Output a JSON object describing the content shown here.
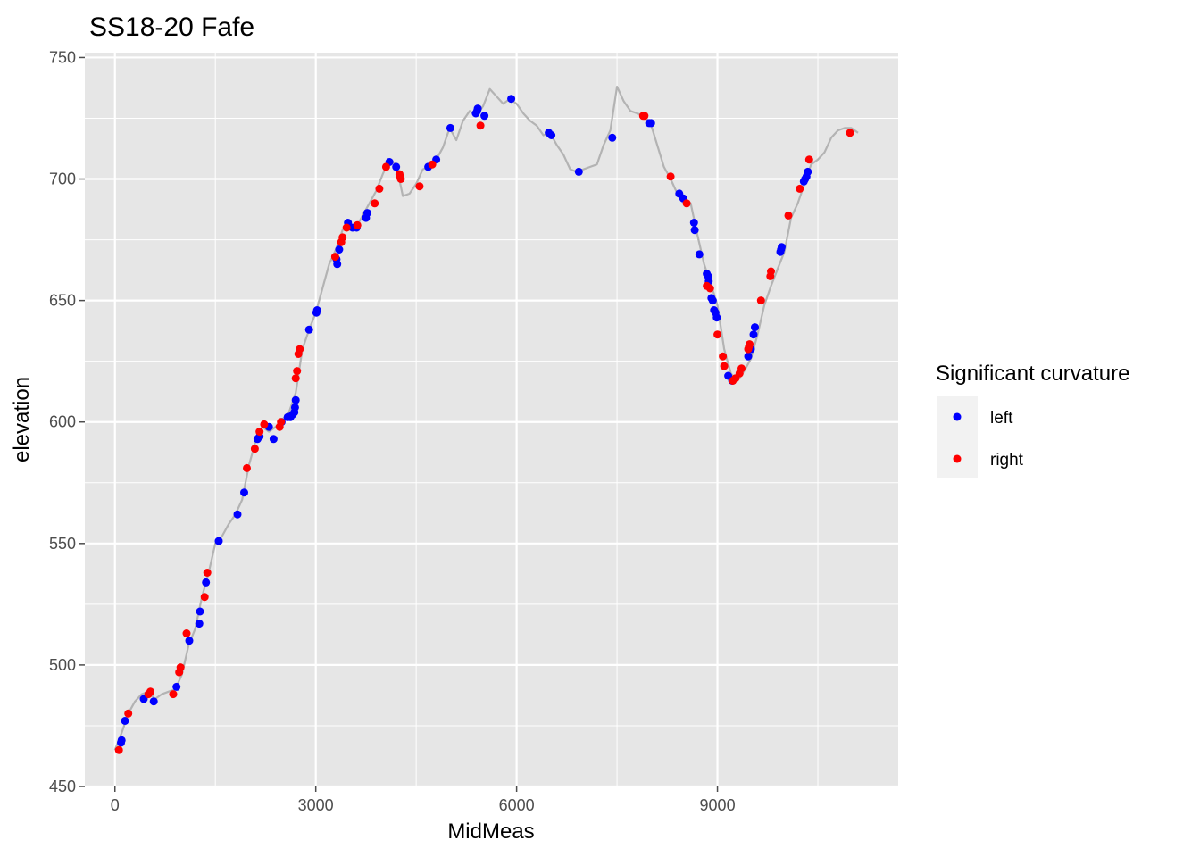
{
  "colors": {
    "panel": "#e6e6e6",
    "grid": "#ffffff",
    "profile": "#b3b3b3",
    "left": "#0000ff",
    "right": "#ff0000",
    "tick": "#4d4d4d"
  },
  "chart_data": {
    "type": "scatter",
    "title": "SS18-20 Fafe",
    "xlabel": "MidMeas",
    "ylabel": "elevation",
    "xlim": [
      -450,
      11700
    ],
    "ylim": [
      450,
      752
    ],
    "x_ticks": [
      0,
      3000,
      6000,
      9000
    ],
    "x_tick_labels": [
      "0",
      "3000",
      "6000",
      "9000"
    ],
    "y_ticks": [
      450,
      500,
      550,
      600,
      650,
      700,
      750
    ],
    "y_tick_labels": [
      "450",
      "500",
      "550",
      "600",
      "650",
      "700",
      "750"
    ],
    "grid": true,
    "legend": {
      "title": "Significant curvature",
      "placement": "right",
      "entries": [
        {
          "label": "left",
          "color": "#0000ff"
        },
        {
          "label": "right",
          "color": "#ff0000"
        }
      ]
    },
    "profile_line": {
      "color": "#b3b3b3",
      "x": [
        0,
        100,
        200,
        300,
        400,
        500,
        600,
        700,
        800,
        900,
        1000,
        1100,
        1200,
        1300,
        1400,
        1500,
        1600,
        1700,
        1800,
        1900,
        2000,
        2100,
        2200,
        2300,
        2400,
        2500,
        2600,
        2700,
        2800,
        2900,
        3000,
        3100,
        3200,
        3300,
        3400,
        3500,
        3600,
        3700,
        3800,
        3900,
        4000,
        4100,
        4200,
        4300,
        4400,
        4500,
        4600,
        4700,
        4800,
        4900,
        5000,
        5100,
        5200,
        5300,
        5400,
        5500,
        5600,
        5700,
        5800,
        5900,
        6000,
        6100,
        6200,
        6300,
        6400,
        6500,
        6600,
        6700,
        6800,
        6900,
        7000,
        7100,
        7200,
        7300,
        7400,
        7500,
        7600,
        7700,
        7800,
        7900,
        8000,
        8100,
        8200,
        8300,
        8400,
        8500,
        8600,
        8700,
        8800,
        8900,
        9000,
        9100,
        9200,
        9300,
        9400,
        9500,
        9600,
        9700,
        9800,
        9900,
        10000,
        10100,
        10200,
        10300,
        10400,
        10500,
        10600,
        10700,
        10800,
        10900,
        11000,
        11100
      ],
      "y": [
        465,
        472,
        480,
        485,
        488,
        489,
        486,
        488,
        489,
        490,
        496,
        508,
        515,
        528,
        538,
        550,
        553,
        558,
        562,
        568,
        582,
        592,
        598,
        596,
        598,
        601,
        604,
        612,
        630,
        638,
        645,
        655,
        665,
        671,
        679,
        681,
        680,
        685,
        690,
        695,
        702,
        708,
        706,
        693,
        694,
        698,
        704,
        705,
        708,
        713,
        721,
        716,
        724,
        728,
        726,
        730,
        737,
        734,
        731,
        733,
        731,
        727,
        724,
        722,
        718,
        719,
        714,
        710,
        704,
        703,
        704,
        705,
        706,
        714,
        720,
        738,
        732,
        728,
        727,
        726,
        723,
        714,
        705,
        700,
        694,
        692,
        690,
        677,
        665,
        657,
        648,
        630,
        620,
        617,
        621,
        626,
        636,
        648,
        656,
        663,
        670,
        684,
        690,
        698,
        706,
        708,
        711,
        717,
        720,
        721,
        721,
        719
      ]
    },
    "series": [
      {
        "name": "left",
        "color": "#0000ff",
        "x": [
          90,
          100,
          150,
          430,
          580,
          920,
          1110,
          1260,
          1270,
          1360,
          1550,
          1830,
          1930,
          2130,
          2160,
          2300,
          2370,
          2490,
          2580,
          2620,
          2650,
          2680,
          2690,
          2700,
          2900,
          3010,
          3020,
          3310,
          3320,
          3350,
          3480,
          3550,
          3610,
          3750,
          3770,
          4100,
          4200,
          4680,
          4800,
          5010,
          5390,
          5410,
          5420,
          5520,
          5920,
          6480,
          6520,
          6930,
          7430,
          7980,
          8010,
          8430,
          8490,
          8650,
          8660,
          8730,
          8840,
          8860,
          8870,
          8910,
          8930,
          8950,
          8970,
          8990,
          9160,
          9220,
          9460,
          9500,
          9540,
          9560,
          9940,
          9950,
          9960,
          10290,
          10310,
          10330,
          10350
        ],
        "y": [
          468,
          469,
          477,
          486,
          485,
          491,
          510,
          517,
          522,
          534,
          551,
          562,
          571,
          593,
          594,
          598,
          593,
          600,
          602,
          602,
          603,
          604,
          606,
          609,
          638,
          645,
          646,
          667,
          665,
          671,
          682,
          680,
          680,
          684,
          686,
          707,
          705,
          705,
          708,
          721,
          727,
          728,
          729,
          726,
          733,
          719,
          718,
          703,
          717,
          723,
          723,
          694,
          692,
          682,
          679,
          669,
          661,
          660,
          658,
          651,
          650,
          646,
          645,
          643,
          619,
          617,
          627,
          630,
          636,
          639,
          670,
          671,
          672,
          699,
          700,
          701,
          703
        ]
      },
      {
        "name": "right",
        "color": "#ff0000",
        "x": [
          60,
          200,
          500,
          530,
          870,
          960,
          980,
          1070,
          1340,
          1380,
          1970,
          2090,
          2160,
          2230,
          2460,
          2480,
          2700,
          2720,
          2740,
          2760,
          3290,
          3380,
          3400,
          3460,
          3620,
          3880,
          3950,
          4050,
          4250,
          4260,
          4270,
          4550,
          4740,
          5460,
          7890,
          7910,
          8300,
          8540,
          8840,
          8890,
          9000,
          9080,
          9100,
          9230,
          9270,
          9330,
          9360,
          9460,
          9470,
          9480,
          9650,
          9790,
          9800,
          10060,
          10230,
          10370,
          10980
        ],
        "y": [
          465,
          480,
          488,
          489,
          488,
          497,
          499,
          513,
          528,
          538,
          581,
          589,
          596,
          599,
          598,
          600,
          618,
          621,
          628,
          630,
          668,
          674,
          676,
          680,
          681,
          690,
          696,
          705,
          702,
          701,
          700,
          697,
          706,
          722,
          726,
          726,
          701,
          690,
          656,
          655,
          636,
          627,
          623,
          617,
          618,
          620,
          622,
          630,
          631,
          632,
          650,
          660,
          662,
          685,
          696,
          708,
          719
        ]
      }
    ]
  }
}
